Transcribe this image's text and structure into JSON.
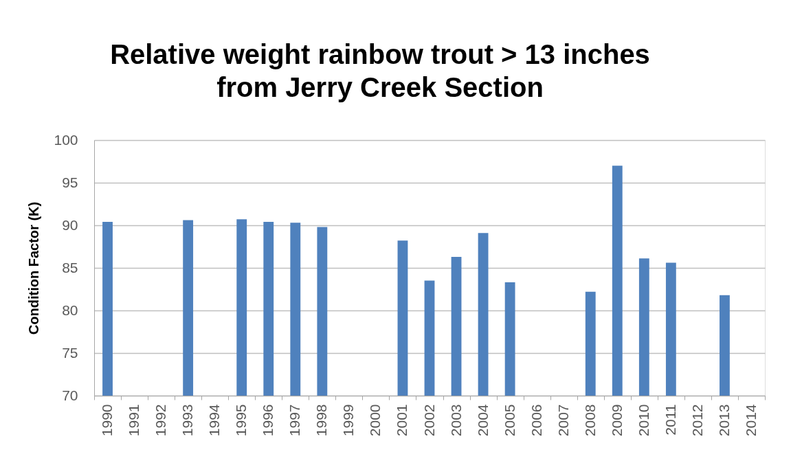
{
  "chart_data": {
    "type": "bar",
    "title": "Relative weight rainbow trout > 13 inches\nfrom Jerry Creek Section",
    "ylabel": "Condition Factor (K)",
    "categories": [
      "1990",
      "1991",
      "1992",
      "1993",
      "1994",
      "1995",
      "1996",
      "1997",
      "1998",
      "1999",
      "2000",
      "2001",
      "2002",
      "2003",
      "2004",
      "2005",
      "2006",
      "2007",
      "2008",
      "2009",
      "2010",
      "2011",
      "2012",
      "2013",
      "2014"
    ],
    "values": [
      90.4,
      null,
      null,
      90.6,
      null,
      90.7,
      90.4,
      90.3,
      89.8,
      null,
      null,
      88.2,
      83.5,
      86.3,
      89.1,
      83.3,
      null,
      null,
      82.2,
      97.0,
      86.1,
      85.6,
      null,
      81.8,
      null
    ],
    "color": "#4f81bd",
    "ylim": [
      70,
      100
    ],
    "yticks": [
      70,
      75,
      80,
      85,
      90,
      95,
      100
    ],
    "grid": "y"
  }
}
